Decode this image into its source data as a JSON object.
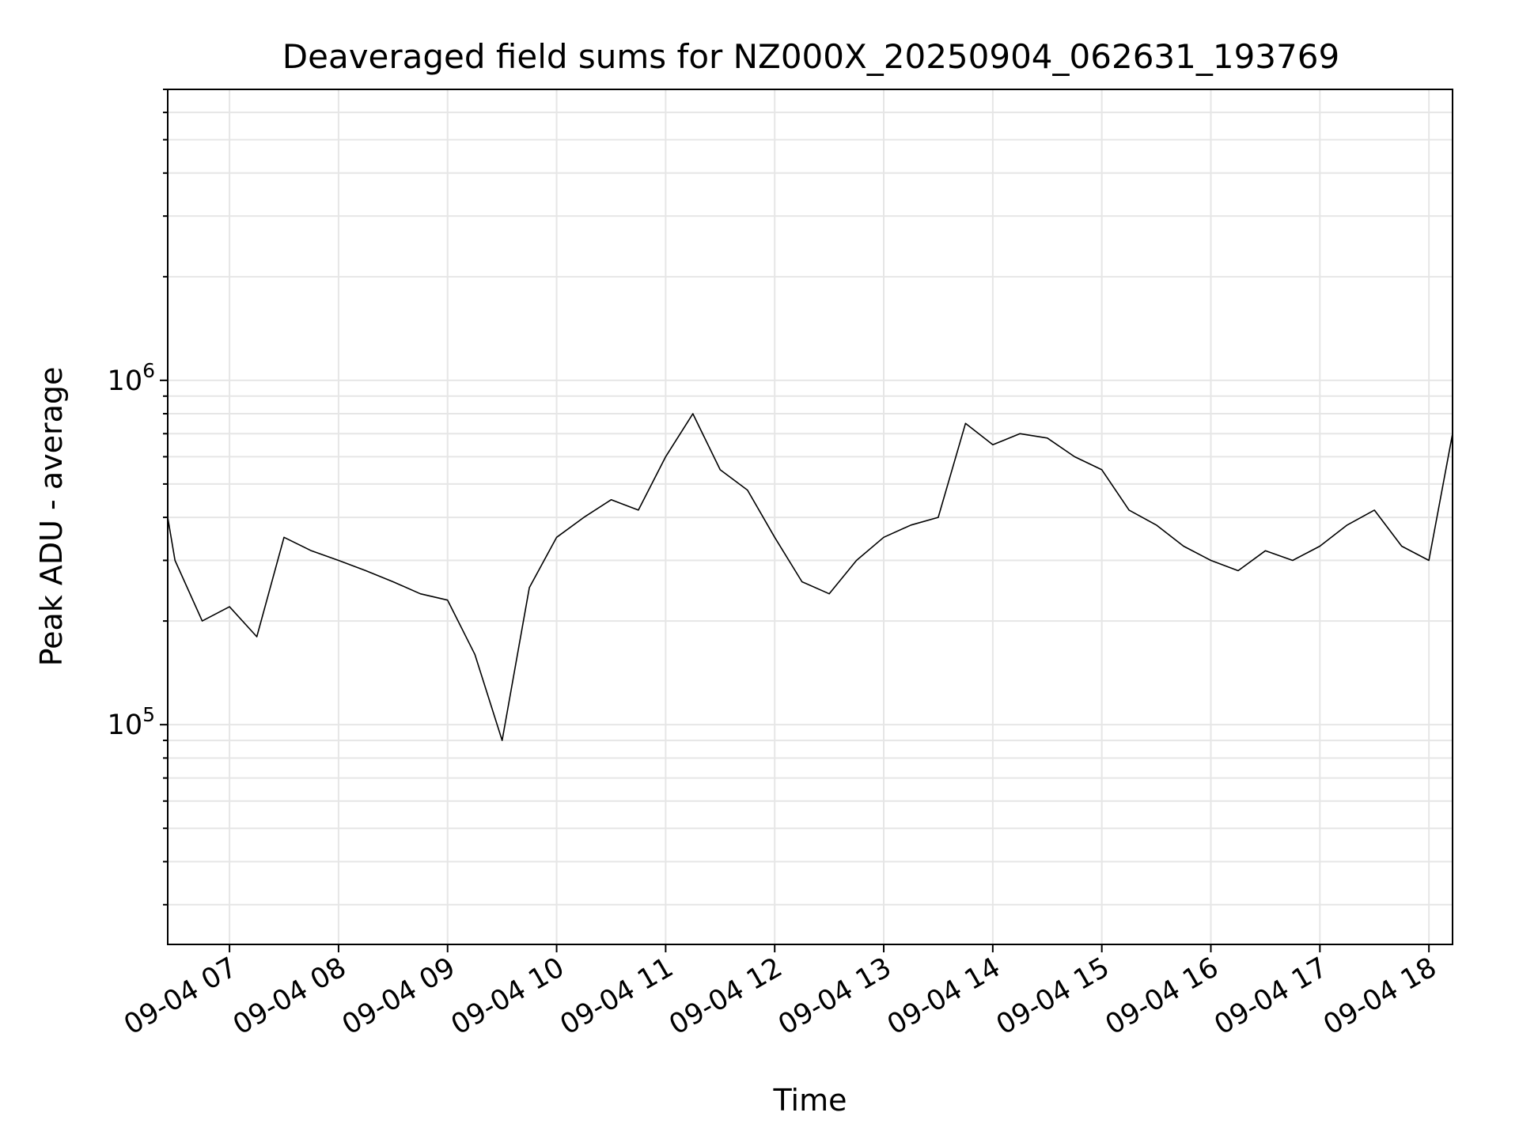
{
  "chart_data": {
    "type": "line",
    "title": "Deaveraged field sums for NZ000X_20250904_062631_193769",
    "xlabel": "Time",
    "ylabel": "Peak ADU - average",
    "yscale": "log",
    "xlim": [
      "2025-09-04 06:26",
      "2025-09-04 18:13"
    ],
    "ylim": [
      23000,
      7000000
    ],
    "grid": true,
    "line_color": "#000000",
    "x_ticks": [
      "09-04 07",
      "09-04 08",
      "09-04 09",
      "09-04 10",
      "09-04 11",
      "09-04 12",
      "09-04 13",
      "09-04 14",
      "09-04 15",
      "09-04 16",
      "09-04 17",
      "09-04 18"
    ],
    "y_ticks": [
      {
        "value": 100000,
        "base": "10",
        "exp": "5"
      },
      {
        "value": 1000000,
        "base": "10",
        "exp": "6"
      }
    ],
    "series": [
      {
        "x": [
          "2025-09-04 06:26",
          "2025-09-04 06:30",
          "2025-09-04 06:45",
          "2025-09-04 07:00",
          "2025-09-04 07:15",
          "2025-09-04 07:30",
          "2025-09-04 07:45",
          "2025-09-04 08:00",
          "2025-09-04 08:15",
          "2025-09-04 08:30",
          "2025-09-04 08:45",
          "2025-09-04 09:00",
          "2025-09-04 09:15",
          "2025-09-04 09:30",
          "2025-09-04 09:45",
          "2025-09-04 10:00",
          "2025-09-04 10:15",
          "2025-09-04 10:30",
          "2025-09-04 10:45",
          "2025-09-04 11:00",
          "2025-09-04 11:15",
          "2025-09-04 11:30",
          "2025-09-04 11:45",
          "2025-09-04 12:00",
          "2025-09-04 12:15",
          "2025-09-04 12:30",
          "2025-09-04 12:45",
          "2025-09-04 13:00",
          "2025-09-04 13:15",
          "2025-09-04 13:30",
          "2025-09-04 13:45",
          "2025-09-04 14:00",
          "2025-09-04 14:15",
          "2025-09-04 14:30",
          "2025-09-04 14:45",
          "2025-09-04 15:00",
          "2025-09-04 15:15",
          "2025-09-04 15:30",
          "2025-09-04 15:45",
          "2025-09-04 16:00",
          "2025-09-04 16:15",
          "2025-09-04 16:30",
          "2025-09-04 16:45",
          "2025-09-04 17:00",
          "2025-09-04 17:15",
          "2025-09-04 17:30",
          "2025-09-04 17:45",
          "2025-09-04 18:00",
          "2025-09-04 18:13"
        ],
        "y": [
          400000,
          300000,
          200000,
          220000,
          180000,
          350000,
          320000,
          300000,
          280000,
          260000,
          240000,
          230000,
          160000,
          90000,
          250000,
          350000,
          400000,
          450000,
          420000,
          600000,
          800000,
          550000,
          480000,
          350000,
          260000,
          240000,
          300000,
          350000,
          380000,
          400000,
          750000,
          650000,
          700000,
          680000,
          600000,
          550000,
          420000,
          380000,
          330000,
          300000,
          280000,
          320000,
          300000,
          330000,
          380000,
          420000,
          330000,
          300000,
          700000
        ]
      }
    ]
  }
}
